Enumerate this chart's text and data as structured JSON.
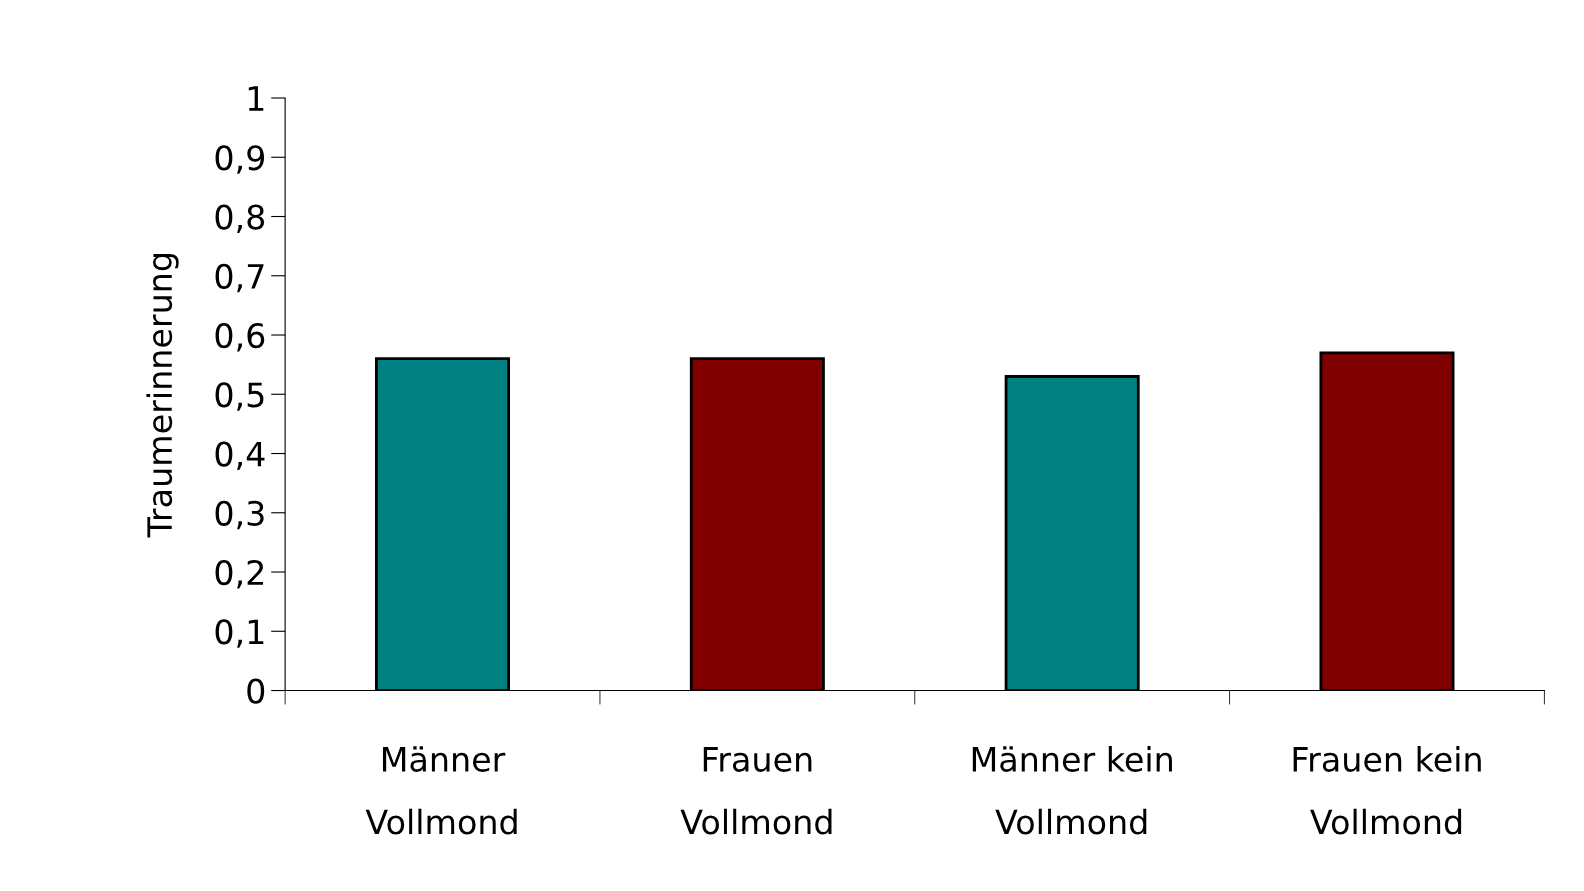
{
  "chart_data": {
    "type": "bar",
    "ylabel": "Traumerinnerung",
    "categories": [
      "Männer\nVollmond",
      "Frauen\nVollmond",
      "Männer kein\nVollmond",
      "Frauen kein\nVollmond"
    ],
    "values": [
      0.56,
      0.56,
      0.53,
      0.57
    ],
    "colors": [
      "#008080",
      "#800000",
      "#008080",
      "#800000"
    ],
    "ylim": [
      0,
      1
    ],
    "yticks": [
      0,
      {
        "value": 0.1,
        "label": "0,1"
      },
      {
        "value": 0.2,
        "label": "0,2"
      },
      {
        "value": 0.3,
        "label": "0,3"
      },
      {
        "value": 0.4,
        "label": "0,4"
      },
      {
        "value": 0.5,
        "label": "0,5"
      },
      {
        "value": 0.6,
        "label": "0,6"
      },
      {
        "value": 0.7,
        "label": "0,7"
      },
      {
        "value": 0.8,
        "label": "0,8"
      },
      {
        "value": 0.9,
        "label": "0,9"
      },
      1
    ],
    "grid": false,
    "legend": false
  }
}
